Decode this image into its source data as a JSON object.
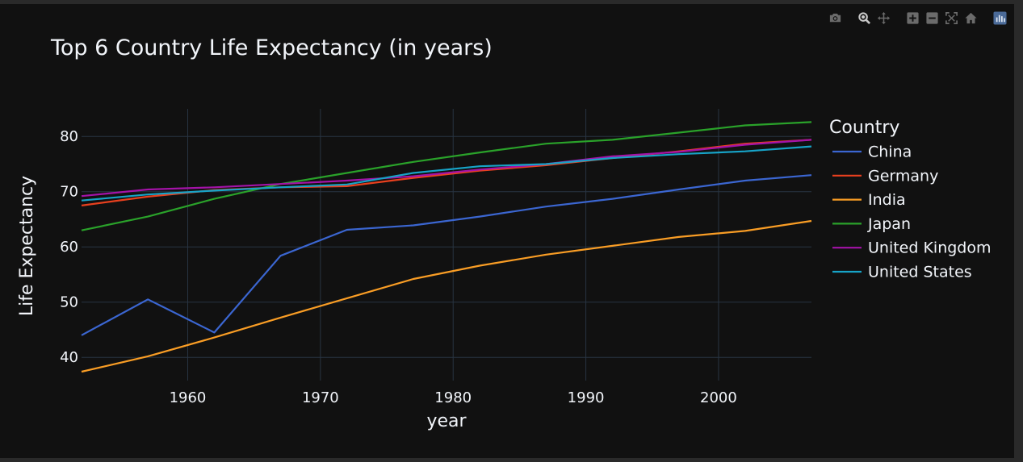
{
  "toolbar": {
    "buttons": [
      {
        "icon": "camera-icon",
        "group": 0
      },
      {
        "icon": "zoom-icon",
        "group": 1
      },
      {
        "icon": "pan-icon",
        "group": 1
      },
      {
        "icon": "zoom-in-icon",
        "group": 2
      },
      {
        "icon": "zoom-out-icon",
        "group": 2
      },
      {
        "icon": "autoscale-icon",
        "group": 2
      },
      {
        "icon": "reset-axes-icon",
        "group": 2
      },
      {
        "icon": "plotly-logo-icon",
        "group": 3
      }
    ]
  },
  "chart_data": {
    "type": "line",
    "title": "Top 6 Country Life Expectancy (in years)",
    "xlabel": "year",
    "ylabel": "Life Expectancy",
    "xlim": [
      1952,
      2007
    ],
    "ylim": [
      35.8,
      85
    ],
    "xticks": [
      1960,
      1970,
      1980,
      1990,
      2000
    ],
    "yticks": [
      40,
      50,
      60,
      70,
      80
    ],
    "grid": true,
    "legend_title": "Country",
    "legend_position": "right",
    "x": [
      1952,
      1957,
      1962,
      1967,
      1972,
      1977,
      1982,
      1987,
      1992,
      1997,
      2002,
      2007
    ],
    "series": [
      {
        "name": "China",
        "color": "#3b66d1",
        "values": [
          44.0,
          50.5,
          44.5,
          58.4,
          63.1,
          63.9,
          65.5,
          67.3,
          68.7,
          70.4,
          72.0,
          73.0
        ]
      },
      {
        "name": "Germany",
        "color": "#e8401e",
        "values": [
          67.5,
          69.1,
          70.3,
          70.8,
          71.0,
          72.5,
          73.8,
          74.8,
          76.1,
          77.3,
          78.7,
          79.4
        ]
      },
      {
        "name": "India",
        "color": "#f99d25",
        "values": [
          37.4,
          40.2,
          43.6,
          47.2,
          50.7,
          54.2,
          56.6,
          58.6,
          60.2,
          61.8,
          62.9,
          64.7
        ]
      },
      {
        "name": "Japan",
        "color": "#2aa22a",
        "values": [
          63.0,
          65.5,
          68.7,
          71.4,
          73.4,
          75.4,
          77.1,
          78.7,
          79.4,
          80.7,
          82.0,
          82.6
        ]
      },
      {
        "name": "United Kingdom",
        "color": "#a413a8",
        "values": [
          69.2,
          70.4,
          70.8,
          71.4,
          72.0,
          72.8,
          74.0,
          75.0,
          76.4,
          77.2,
          78.5,
          79.4
        ]
      },
      {
        "name": "United States",
        "color": "#17a3c7",
        "values": [
          68.4,
          69.5,
          70.2,
          70.8,
          71.3,
          73.4,
          74.6,
          75.0,
          76.1,
          76.8,
          77.3,
          78.2
        ]
      }
    ]
  }
}
